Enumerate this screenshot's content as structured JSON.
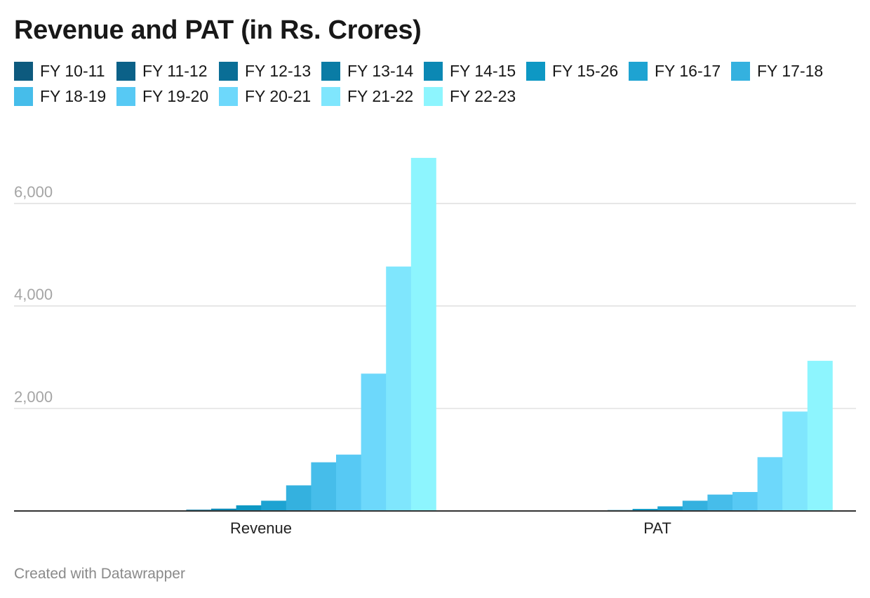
{
  "chart_data": {
    "type": "bar",
    "title": "Revenue and PAT (in Rs. Crores)",
    "categories": [
      "Revenue",
      "PAT"
    ],
    "series": [
      {
        "name": "FY 10-11",
        "color": "#0d5a7e",
        "values": [
          2,
          1
        ]
      },
      {
        "name": "FY 11-12",
        "color": "#0b6188",
        "values": [
          5,
          2
        ]
      },
      {
        "name": "FY 12-13",
        "color": "#0a6e96",
        "values": [
          12,
          4
        ]
      },
      {
        "name": "FY 13-14",
        "color": "#0a7ca5",
        "values": [
          25,
          8
        ]
      },
      {
        "name": "FY 14-15",
        "color": "#0b88b4",
        "values": [
          45,
          18
        ]
      },
      {
        "name": "FY 15-26",
        "color": "#0e98c4",
        "values": [
          110,
          40
        ]
      },
      {
        "name": "FY 16-17",
        "color": "#1ea3d2",
        "values": [
          200,
          90
        ]
      },
      {
        "name": "FY 17-18",
        "color": "#34b1df",
        "values": [
          500,
          200
        ]
      },
      {
        "name": "FY 18-19",
        "color": "#46bdea",
        "values": [
          950,
          320
        ]
      },
      {
        "name": "FY 19-20",
        "color": "#57c9f4",
        "values": [
          1100,
          370
        ]
      },
      {
        "name": "FY 20-21",
        "color": "#6dd8fb",
        "values": [
          2680,
          1050
        ]
      },
      {
        "name": "FY 21-22",
        "color": "#7fe6fd",
        "values": [
          4770,
          1940
        ]
      },
      {
        "name": "FY 22-23",
        "color": "#8df5fe",
        "values": [
          6890,
          2930
        ]
      }
    ],
    "yticks": [
      2000,
      4000,
      6000
    ],
    "ytick_labels": [
      "2,000",
      "4,000",
      "6,000"
    ],
    "ylim": [
      0,
      7300
    ],
    "grid": true,
    "legend_position": "top",
    "gridline_color": "#dcdcdc",
    "baseline_color": "#333333",
    "ytick_color": "#a5a5a5"
  },
  "footer": {
    "credit": "Created with Datawrapper"
  }
}
